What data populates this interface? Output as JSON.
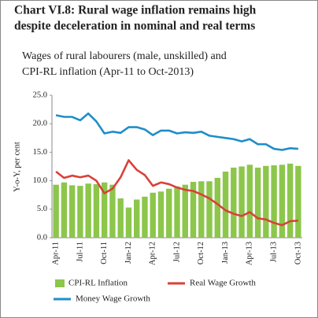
{
  "chart_data": {
    "type": "bar-line",
    "title": [
      "Chart VI.8: Rural wage inflation remains high",
      "despite deceleration in nominal and real terms"
    ],
    "subtitle": [
      "Wages of rural labourers (male, unskilled) and",
      "CPI-RL inflation (Apr-11 to Oct-2013)"
    ],
    "y_label": "Y-o-Y, per cent",
    "categories": [
      "Apr-11",
      null,
      null,
      "Jul-11",
      null,
      null,
      "Oct-11",
      null,
      null,
      "Jan-12",
      null,
      null,
      "Apr-12",
      null,
      null,
      "Jul-12",
      null,
      null,
      "Oct-12",
      null,
      null,
      "Jan-13",
      null,
      null,
      "Apr-13",
      null,
      null,
      "Jul-13",
      null,
      null,
      "Oct-13"
    ],
    "series": [
      {
        "name": "CPI-RL Inflation",
        "kind": "bar",
        "color": "#8cc64b",
        "values": [
          9.3,
          9.7,
          9.2,
          9.1,
          9.5,
          9.4,
          9.7,
          9.3,
          6.9,
          5.3,
          6.7,
          7.2,
          7.9,
          8.1,
          8.6,
          9.0,
          9.3,
          9.8,
          9.9,
          9.9,
          10.5,
          11.6,
          12.3,
          12.5,
          12.8,
          12.3,
          12.6,
          12.7,
          12.8,
          13.0,
          12.6
        ]
      },
      {
        "name": "Real Wage Growth",
        "kind": "line",
        "color": "#d9413a",
        "values": [
          11.6,
          10.5,
          10.9,
          10.6,
          10.9,
          10.0,
          7.8,
          8.6,
          10.6,
          13.6,
          11.9,
          11.0,
          9.1,
          9.7,
          9.4,
          8.8,
          8.4,
          8.2,
          7.6,
          6.9,
          5.9,
          4.8,
          4.2,
          3.8,
          4.5,
          3.4,
          3.2,
          2.6,
          2.2,
          2.9,
          3.0
        ]
      },
      {
        "name": "Money Wage Growth",
        "kind": "line",
        "color": "#1f8ec9",
        "values": [
          21.5,
          21.2,
          21.2,
          20.6,
          21.8,
          20.4,
          18.3,
          18.6,
          18.4,
          19.4,
          19.4,
          19.0,
          18.0,
          18.8,
          18.8,
          18.3,
          18.5,
          18.4,
          18.6,
          17.9,
          17.7,
          17.5,
          17.3,
          16.9,
          17.3,
          16.4,
          16.4,
          15.6,
          15.4,
          15.7,
          15.6
        ]
      }
    ],
    "ylim": [
      0,
      25
    ],
    "yticks": [
      {
        "value": 0,
        "label": "0.0"
      },
      {
        "value": 5,
        "label": "5.0"
      },
      {
        "value": 10,
        "label": "10.0"
      },
      {
        "value": 15,
        "label": "15.0"
      },
      {
        "value": 20,
        "label": "20.0"
      },
      {
        "value": 25,
        "label": "25.0"
      }
    ],
    "grid": false,
    "legend": "bottom"
  }
}
